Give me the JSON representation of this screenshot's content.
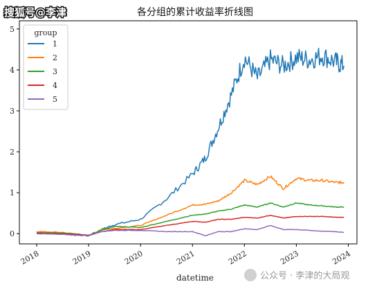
{
  "watermark_top": "搜狐号@李津",
  "watermark_bottom": "公众号 · 李津的大局观",
  "colors": {
    "axes": "#000000",
    "background": "#ffffff"
  },
  "chart_data": {
    "type": "line",
    "title": "各分组的累计收益率折线图",
    "xlabel": "datetime",
    "ylabel": "",
    "x_range": [
      "2017-09",
      "2024-03"
    ],
    "ylim": [
      -0.25,
      5.2
    ],
    "x_ticks": [
      "2018",
      "2019",
      "2020",
      "2021",
      "2022",
      "2023",
      "2024"
    ],
    "y_ticks": [
      0,
      1,
      2,
      3,
      4,
      5
    ],
    "grid": false,
    "legend": {
      "title": "group",
      "position": "top-left"
    },
    "x": [
      "2018-01",
      "2018-07",
      "2019-01",
      "2019-04",
      "2019-07",
      "2020-01",
      "2020-07",
      "2021-01",
      "2021-04",
      "2021-07",
      "2021-10",
      "2022-01",
      "2022-04",
      "2022-07",
      "2022-10",
      "2023-01",
      "2023-04",
      "2023-07",
      "2023-10",
      "2023-12"
    ],
    "series": [
      {
        "name": "1",
        "color": "#1f77b4",
        "values": [
          0.02,
          0.0,
          -0.05,
          0.1,
          0.22,
          0.35,
          0.85,
          1.45,
          1.85,
          2.6,
          3.4,
          4.3,
          3.8,
          4.25,
          4.1,
          4.3,
          4.25,
          4.35,
          4.2,
          4.1
        ]
      },
      {
        "name": "2",
        "color": "#ff7f0e",
        "values": [
          0.05,
          0.03,
          -0.05,
          0.1,
          0.13,
          0.2,
          0.45,
          0.7,
          0.72,
          0.8,
          1.0,
          1.3,
          1.2,
          1.4,
          1.1,
          1.35,
          1.3,
          1.3,
          1.25,
          1.25
        ]
      },
      {
        "name": "3",
        "color": "#2ca02c",
        "values": [
          0.03,
          0.02,
          -0.04,
          0.08,
          0.18,
          0.15,
          0.3,
          0.45,
          0.48,
          0.55,
          0.6,
          0.7,
          0.65,
          0.75,
          0.65,
          0.75,
          0.7,
          0.68,
          0.65,
          0.65
        ]
      },
      {
        "name": "4",
        "color": "#d62728",
        "values": [
          0.01,
          0.0,
          -0.04,
          0.05,
          0.1,
          0.1,
          0.2,
          0.3,
          0.28,
          0.35,
          0.35,
          0.4,
          0.38,
          0.45,
          0.38,
          0.42,
          0.42,
          0.42,
          0.4,
          0.4
        ]
      },
      {
        "name": "5",
        "color": "#9467bd",
        "values": [
          0.0,
          -0.02,
          -0.05,
          0.05,
          0.08,
          0.08,
          0.05,
          0.05,
          -0.05,
          0.05,
          0.05,
          0.12,
          0.1,
          0.2,
          0.1,
          0.1,
          0.08,
          0.06,
          0.05,
          0.03
        ]
      }
    ]
  }
}
